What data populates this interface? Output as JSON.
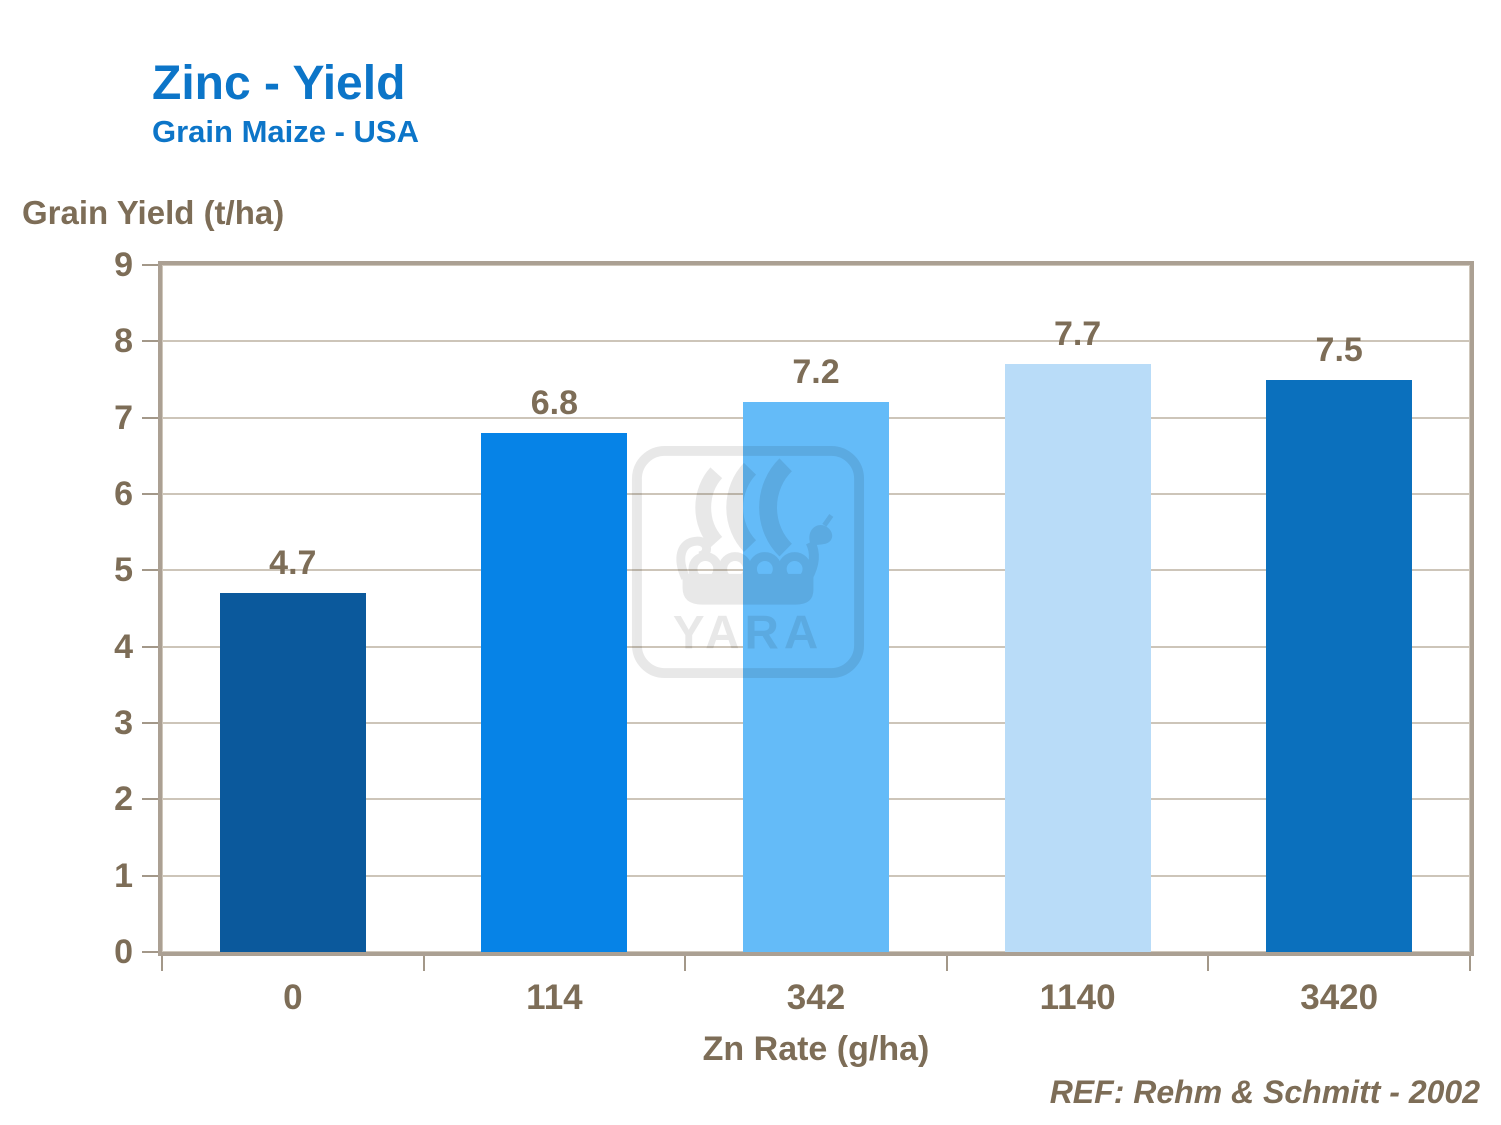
{
  "chart_data": {
    "type": "bar",
    "title": "Zinc - Yield",
    "subtitle": "Grain Maize - USA",
    "y_axis_title": "Grain Yield (t/ha)",
    "xlabel": "Zn Rate (g/ha)",
    "categories": [
      "0",
      "114",
      "342",
      "1140",
      "3420"
    ],
    "values": [
      4.7,
      6.8,
      7.2,
      7.7,
      7.5
    ],
    "value_labels": [
      "4.7",
      "6.8",
      "7.2",
      "7.7",
      "7.5"
    ],
    "bar_colors": [
      "#0b599c",
      "#0683e7",
      "#64bbf8",
      "#b9dcf8",
      "#0b70bd"
    ],
    "ylim": [
      0,
      9
    ],
    "y_ticks": [
      0,
      1,
      2,
      3,
      4,
      5,
      6,
      7,
      8,
      9
    ],
    "grid": true,
    "legend": "none"
  },
  "footer": {
    "ref": "REF: Rehm & Schmitt - 2002"
  },
  "watermark": {
    "name": "yara-viking-ship-logo",
    "text": "YARA"
  },
  "colors": {
    "title_blue": "#0c75c8",
    "axis_text_brown": "#7d6d57",
    "gridline": "#cdc5b9",
    "plot_border": "#aba093",
    "background": "#ffffff"
  }
}
